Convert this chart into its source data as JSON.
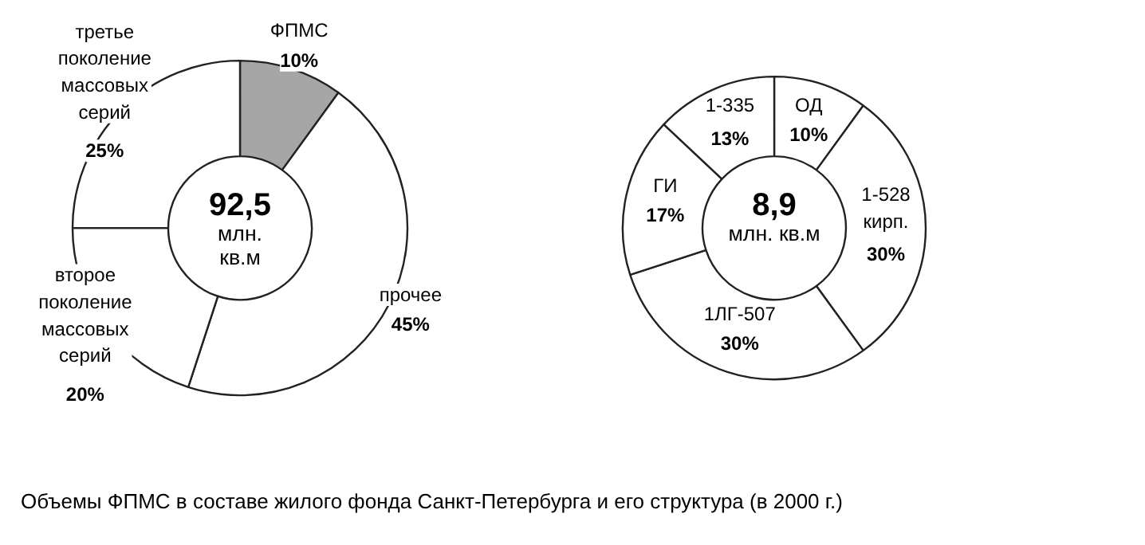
{
  "chart_data": [
    {
      "type": "donut",
      "categories": [
        "ФПМС",
        "прочее",
        "второе\nпоколение\nмассовых\nсерий",
        "третье\nпоколение\nмассовых\nсерий"
      ],
      "values": [
        10,
        45,
        20,
        25
      ],
      "value_labels": [
        "10%",
        "45%",
        "20%",
        "25%"
      ],
      "colors": [
        "#a6a6a6",
        "#ffffff",
        "#ffffff",
        "#ffffff"
      ],
      "annotations": [
        "92,5",
        "млн.\nкв.м",
        "Объемы ФПМС в составе жилого фонда Санкт-Петербурга и его структура (в 2000 г.)"
      ]
    },
    {
      "type": "donut",
      "categories": [
        "ОД",
        "1-528\nкирп.",
        "1ЛГ-507",
        "ГИ",
        "1-335"
      ],
      "values": [
        10,
        30,
        30,
        17,
        13
      ],
      "value_labels": [
        "10%",
        "30%",
        "30%",
        "17%",
        "13%"
      ],
      "colors": [
        "#ffffff",
        "#ffffff",
        "#ffffff",
        "#ffffff",
        "#ffffff"
      ],
      "annotations": [
        "8,9",
        "млн. кв.м"
      ]
    }
  ]
}
